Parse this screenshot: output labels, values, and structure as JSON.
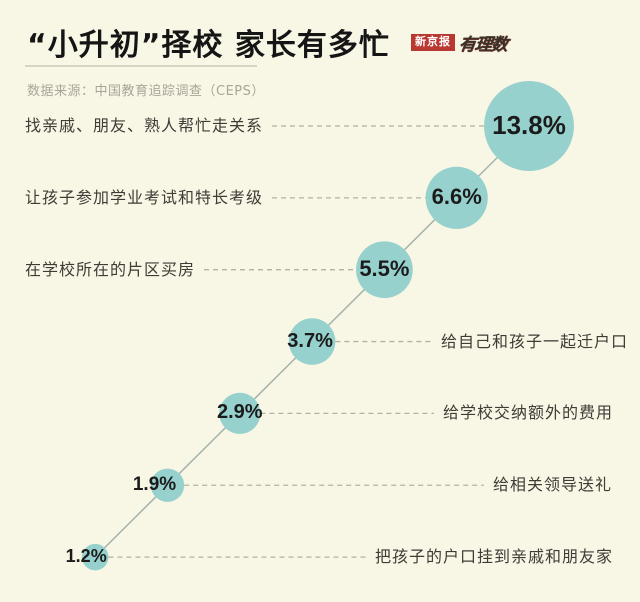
{
  "header": {
    "title": "“小升初”择校 家长有多忙",
    "logo_primary": "新京报",
    "logo_secondary": "有理数",
    "source": "数据来源：中国教育追踪调查（CEPS）"
  },
  "chart_data": {
    "type": "scatter",
    "subtype": "bubble",
    "title": "“小升初”择校 家长有多忙",
    "unit": "%",
    "source": "数据来源：中国教育追踪调查（CEPS）",
    "items": [
      {
        "label": "找亲戚、朋友、熟人帮忙走关系",
        "value": 13.8,
        "display": "13.8%",
        "side": "left"
      },
      {
        "label": "让孩子参加学业考试和特长考级",
        "value": 6.6,
        "display": "6.6%",
        "side": "left"
      },
      {
        "label": "在学校所在的片区买房",
        "value": 5.5,
        "display": "5.5%",
        "side": "left"
      },
      {
        "label": "给自己和孩子一起迁户口",
        "value": 3.7,
        "display": "3.7%",
        "side": "right"
      },
      {
        "label": "给学校交纳额外的费用",
        "value": 2.9,
        "display": "2.9%",
        "side": "right"
      },
      {
        "label": "给相关领导送礼",
        "value": 1.9,
        "display": "1.9%",
        "side": "right"
      },
      {
        "label": "把孩子的户口挂到亲戚和朋友家",
        "value": 1.2,
        "display": "1.2%",
        "side": "right"
      }
    ],
    "layout_hints": {
      "arrangement": "diagonal, largest top-right to smallest bottom-left",
      "bubble_area_proportional_to_value": true,
      "legend": false,
      "axes": false
    },
    "colors": {
      "background": "#f8f6e5",
      "bubble": "#96d1cd",
      "value_text": "#1b1b1b",
      "label_text": "#3e3c35",
      "connector": "#a3b2ab",
      "dash": "#b5b1a2",
      "accent_red": "#b93831",
      "divider": "#d7d4c4",
      "source_text": "#a9a599"
    }
  }
}
